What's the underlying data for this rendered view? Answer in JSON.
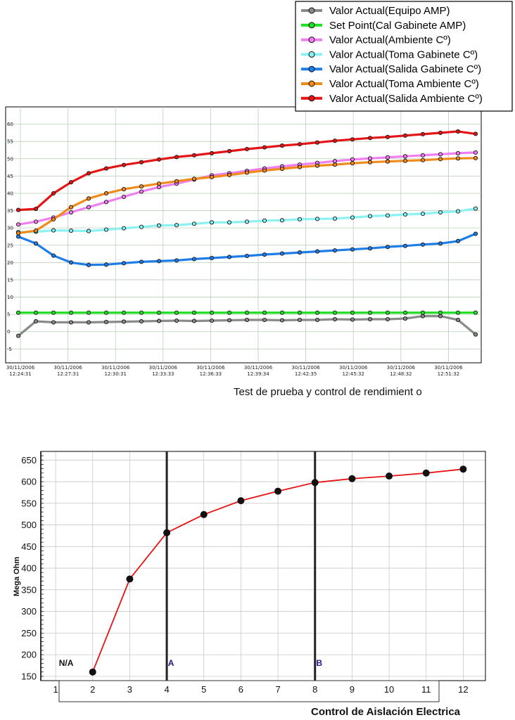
{
  "chart_data": [
    {
      "type": "line",
      "caption": "Test de prueba  y control de rendimient           o",
      "x_ticks": [
        "30/11/2006\n12:24:31",
        "30/11/2006\n12:27:31",
        "30/11/2006\n12:30:31",
        "30/11/2006\n12:33:33",
        "30/11/2006\n12:36:33",
        "30/11/2006\n12:39:34",
        "30/11/2006\n12:42:35",
        "30/11/2006\n12:45:32",
        "30/11/2006\n12:48:32",
        "30/11/2006\n12:51:32"
      ],
      "y_ticks": [
        -5,
        0,
        5,
        10,
        15,
        20,
        25,
        30,
        35,
        40,
        45,
        50,
        55,
        60
      ],
      "ylim": [
        -9,
        65
      ],
      "grid": true,
      "legend_position": "top-right",
      "series": [
        {
          "name": "Valor Actual(Equipo AMP)",
          "color": "#8a8a8a",
          "values": [
            -1.2,
            3.0,
            2.7,
            2.7,
            2.7,
            2.8,
            2.9,
            3.0,
            3.1,
            3.2,
            3.1,
            3.2,
            3.3,
            3.4,
            3.4,
            3.3,
            3.4,
            3.4,
            3.6,
            3.5,
            3.6,
            3.6,
            3.8,
            4.5,
            4.5,
            3.4,
            -0.8
          ]
        },
        {
          "name": "Set Point(Cal Gabinete AMP)",
          "color": "#1fe01f",
          "values": [
            5.5,
            5.5,
            5.5,
            5.5,
            5.5,
            5.5,
            5.5,
            5.5,
            5.5,
            5.5,
            5.5,
            5.5,
            5.5,
            5.5,
            5.5,
            5.5,
            5.5,
            5.5,
            5.5,
            5.5,
            5.5,
            5.5,
            5.5,
            5.5,
            5.5,
            5.5,
            5.5
          ]
        },
        {
          "name": "Valor Actual(Ambiente Cº)",
          "color": "#f07ef0",
          "values": [
            31.0,
            31.8,
            33.0,
            34.5,
            36.0,
            37.5,
            39.0,
            40.5,
            41.8,
            42.8,
            44.0,
            45.2,
            45.8,
            46.5,
            47.2,
            47.8,
            48.3,
            48.8,
            49.3,
            49.8,
            50.1,
            50.4,
            50.7,
            51.0,
            51.3,
            51.6,
            51.8
          ]
        },
        {
          "name": "Valor Actual(Toma Gabinete Cº)",
          "color": "#8af2f2",
          "values": [
            28.8,
            28.9,
            29.3,
            29.2,
            29.1,
            29.5,
            29.9,
            30.3,
            30.7,
            30.8,
            31.2,
            31.6,
            31.6,
            31.8,
            32.1,
            32.2,
            32.5,
            32.6,
            32.7,
            33.0,
            33.4,
            33.6,
            33.9,
            34.1,
            34.5,
            34.8,
            35.6
          ]
        },
        {
          "name": "Valor Actual(Salida  Gabinete Cº)",
          "color": "#1e7ee8",
          "values": [
            27.5,
            25.5,
            22.0,
            20.0,
            19.3,
            19.4,
            19.8,
            20.2,
            20.4,
            20.6,
            21.0,
            21.3,
            21.6,
            21.9,
            22.3,
            22.6,
            22.9,
            23.2,
            23.5,
            23.8,
            24.1,
            24.5,
            24.8,
            25.2,
            25.5,
            26.2,
            28.3
          ]
        },
        {
          "name": "Valor Actual(Toma Ambiente Cº)",
          "color": "#f08b1a",
          "values": [
            28.5,
            29.2,
            32.5,
            36.0,
            38.5,
            40.0,
            41.2,
            42.0,
            42.8,
            43.5,
            44.2,
            44.7,
            45.3,
            46.0,
            46.6,
            47.1,
            47.6,
            48.0,
            48.3,
            48.7,
            49.0,
            49.2,
            49.4,
            49.6,
            49.9,
            50.1,
            50.2
          ]
        },
        {
          "name": "Valor Actual(Salida Ambiente Cº)",
          "color": "#e61414",
          "values": [
            35.2,
            35.5,
            40.0,
            43.2,
            45.8,
            47.2,
            48.2,
            49.0,
            49.8,
            50.5,
            51.0,
            51.6,
            52.2,
            52.8,
            53.3,
            53.8,
            54.2,
            54.7,
            55.2,
            55.6,
            56.0,
            56.3,
            56.7,
            57.1,
            57.5,
            57.9,
            57.2
          ]
        }
      ]
    },
    {
      "type": "line",
      "xlabel": "Control de Aislación Electrica",
      "ylabel": "Mega Ohm",
      "x": [
        2,
        3,
        4,
        5,
        6,
        7,
        8,
        9,
        10,
        11,
        12
      ],
      "values": [
        160,
        375,
        482,
        524,
        556,
        578,
        598,
        607,
        613,
        620,
        629
      ],
      "x_ticks": [
        "1",
        "2",
        "3",
        "4",
        "5",
        "6",
        "7",
        "8",
        "9",
        "10",
        "11",
        "12"
      ],
      "y_ticks": [
        150,
        200,
        250,
        300,
        350,
        400,
        450,
        500,
        550,
        600,
        650
      ],
      "xlim": [
        0.6,
        12.6
      ],
      "ylim": [
        140,
        670
      ],
      "line_color": "#e61414",
      "grid": true,
      "markers": [
        {
          "label": "N/A",
          "x": 2,
          "color": "#111111"
        },
        {
          "label": "A",
          "x": 4,
          "color": "#1a1a8a"
        },
        {
          "label": "B",
          "x": 8,
          "color": "#1a1a8a"
        }
      ],
      "vertical_lines": [
        4,
        8
      ]
    }
  ]
}
